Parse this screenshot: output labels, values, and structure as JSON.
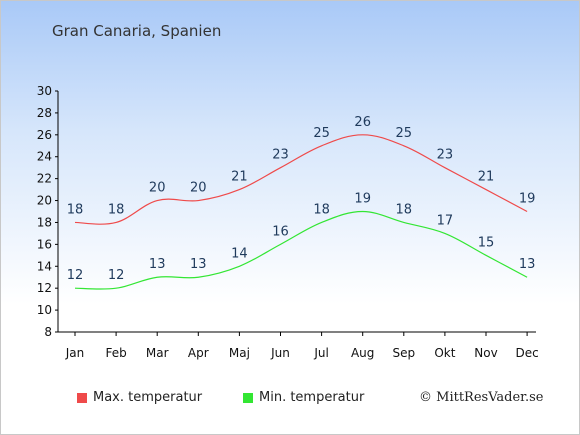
{
  "chart_data": {
    "type": "line",
    "title": "Gran Canaria, Spanien",
    "categories": [
      "Jan",
      "Feb",
      "Mar",
      "Apr",
      "Maj",
      "Jun",
      "Jul",
      "Aug",
      "Sep",
      "Okt",
      "Nov",
      "Dec"
    ],
    "ylim": [
      8,
      30
    ],
    "yticks": [
      8,
      10,
      12,
      14,
      16,
      18,
      20,
      22,
      24,
      26,
      28,
      30
    ],
    "grid": false,
    "legend_position": "bottom",
    "series": [
      {
        "name": "Max. temperatur",
        "color": "#ef4a4a",
        "values": [
          18,
          18,
          20,
          20,
          21,
          23,
          25,
          26,
          25,
          23,
          21,
          19
        ]
      },
      {
        "name": "Min. temperatur",
        "color": "#33e633",
        "values": [
          12,
          12,
          13,
          13,
          14,
          16,
          18,
          19,
          18,
          17,
          15,
          13
        ]
      }
    ]
  },
  "copyright": "© MittResVader.se"
}
